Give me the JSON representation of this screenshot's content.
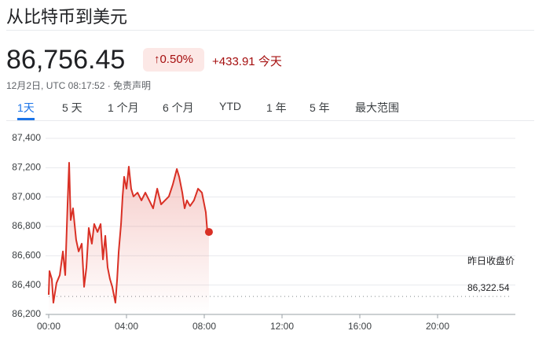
{
  "header": {
    "title": "从比特币到美元",
    "price": "86,756.45",
    "change_percent": "0.50%",
    "change_value": "+433.91",
    "change_period": "今天",
    "timestamp": "12月2日, UTC 08:17:52 · 免责声明"
  },
  "tabs": [
    "1天",
    "5 天",
    "1 个月",
    "6 个月",
    "YTD",
    "1 年",
    "5 年",
    "最大范围"
  ],
  "chart_data": {
    "type": "line",
    "xlim": [
      0,
      24
    ],
    "xticks": [
      {
        "value": 0,
        "label": "00:00"
      },
      {
        "value": 4,
        "label": "04:00"
      },
      {
        "value": 8,
        "label": "08:00"
      },
      {
        "value": 12,
        "label": "12:00"
      },
      {
        "value": 16,
        "label": "16:00"
      },
      {
        "value": 20,
        "label": "20:00"
      }
    ],
    "ylim": [
      86200,
      87400
    ],
    "yticks": [
      {
        "value": 86200,
        "label": "86,200"
      },
      {
        "value": 86400,
        "label": "86,400"
      },
      {
        "value": 86600,
        "label": "86,600"
      },
      {
        "value": 86800,
        "label": "86,800"
      },
      {
        "value": 87000,
        "label": "87,000"
      },
      {
        "value": 87200,
        "label": "87,200"
      },
      {
        "value": 87400,
        "label": "87,400"
      }
    ],
    "grid": true,
    "series": [
      {
        "color": "#d93025",
        "x": [
          0,
          0.04,
          0.16,
          0.24,
          0.4,
          0.57,
          0.73,
          0.85,
          0.97,
          1.05,
          1.13,
          1.25,
          1.41,
          1.54,
          1.7,
          1.82,
          1.94,
          2.06,
          2.22,
          2.34,
          2.51,
          2.67,
          2.79,
          2.91,
          3.03,
          3.15,
          3.27,
          3.43,
          3.52,
          3.6,
          3.72,
          3.8,
          3.88,
          4.0,
          4.12,
          4.24,
          4.36,
          4.57,
          4.77,
          4.97,
          5.17,
          5.37,
          5.58,
          5.78,
          5.98,
          6.18,
          6.38,
          6.59,
          6.71,
          6.87,
          6.99,
          7.11,
          7.27,
          7.47,
          7.68,
          7.88,
          8.08,
          8.16,
          8.24
        ],
        "values": [
          86334,
          86495,
          86441,
          86280,
          86414,
          86468,
          86629,
          86468,
          86950,
          87234,
          86843,
          86923,
          86709,
          86629,
          86682,
          86388,
          86521,
          86789,
          86682,
          86816,
          86762,
          86816,
          86575,
          86736,
          86521,
          86441,
          86388,
          86280,
          86441,
          86629,
          86816,
          87004,
          87138,
          87057,
          87207,
          87057,
          87004,
          87030,
          86977,
          87030,
          86977,
          86923,
          87057,
          86950,
          86977,
          87004,
          87084,
          87191,
          87138,
          87030,
          86923,
          86977,
          86939,
          86977,
          87057,
          87030,
          86896,
          86762,
          86762
        ]
      }
    ],
    "previous_close": {
      "value": 86322.54,
      "label": "86,322.54",
      "name": "昨日收盘价"
    }
  }
}
